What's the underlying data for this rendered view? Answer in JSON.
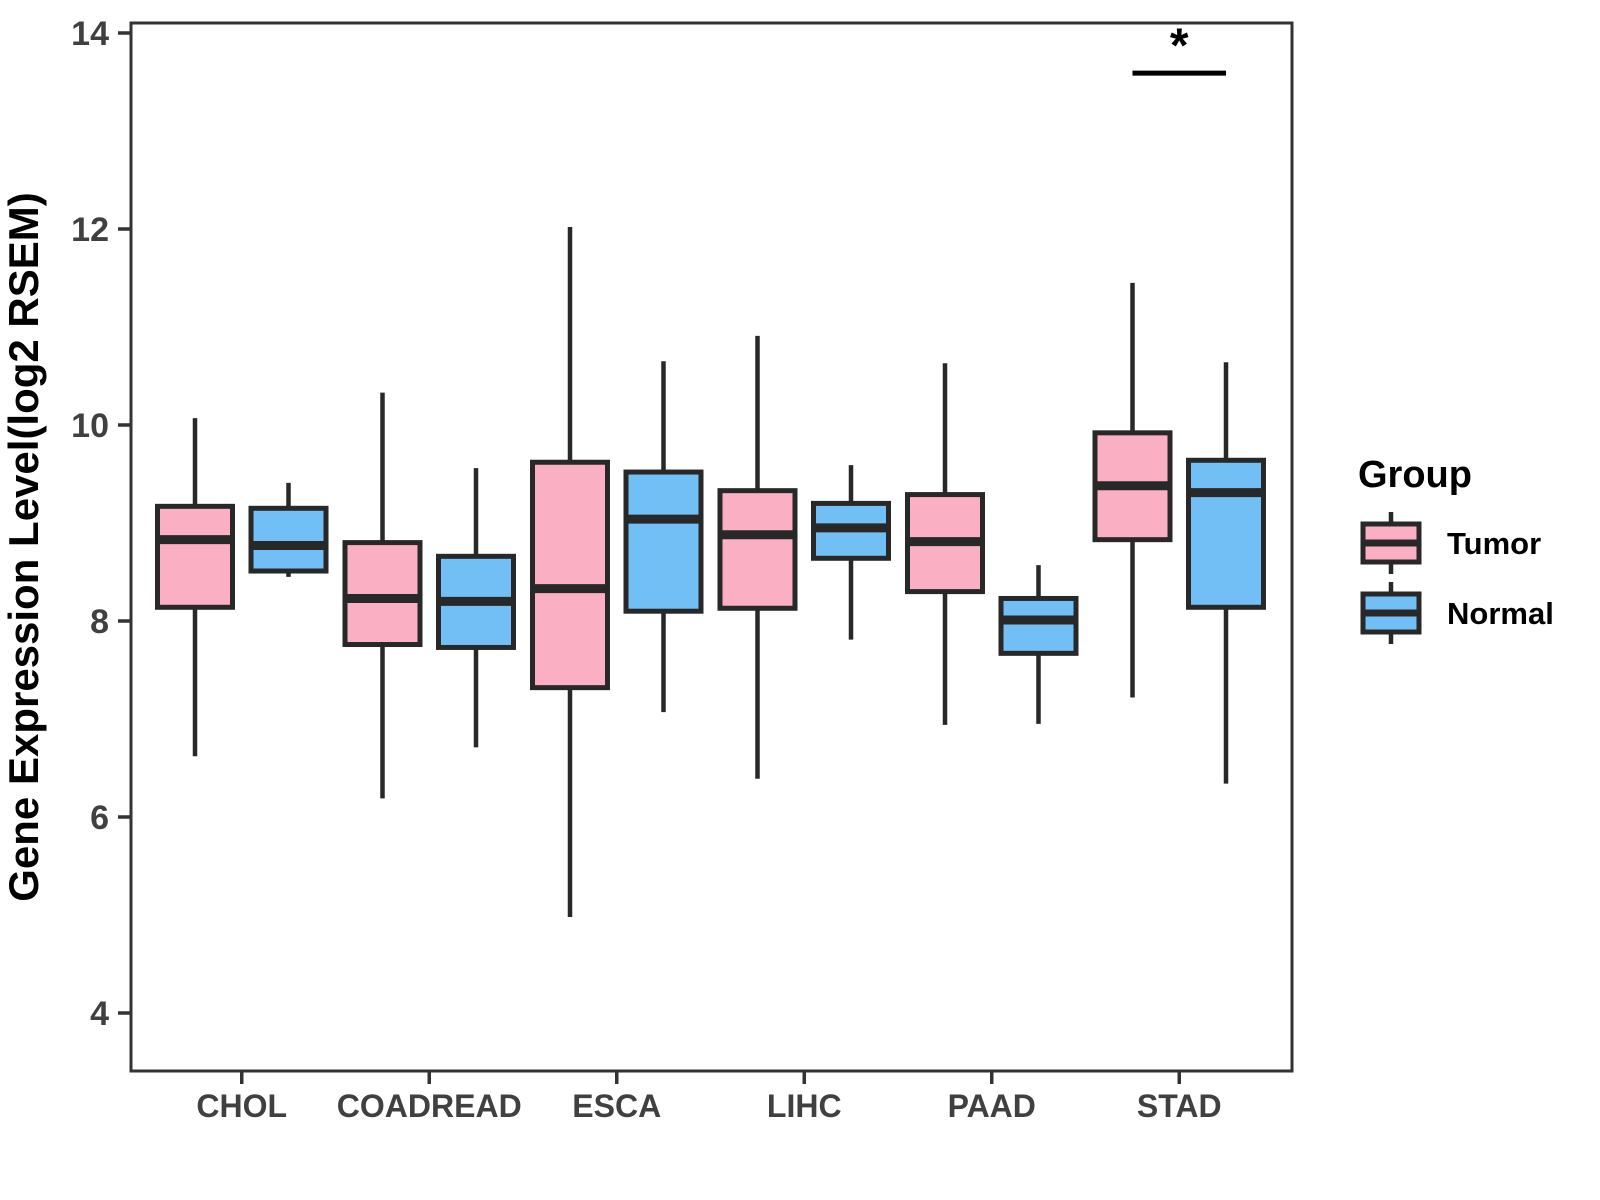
{
  "chart_data": {
    "type": "box",
    "title": "",
    "xlabel": "",
    "ylabel": "Gene Expression Level(log2 RSEM)",
    "ylim": [
      3.4,
      14.1
    ],
    "yticks": [
      14,
      12,
      10,
      8,
      6,
      4
    ],
    "categories": [
      "CHOL",
      "COADREAD",
      "ESCA",
      "LIHC",
      "PAAD",
      "STAD"
    ],
    "grid": "off",
    "legend": {
      "title": "Group",
      "position": "right",
      "entries": [
        {
          "label": "Tumor",
          "color": "#FAAFC2"
        },
        {
          "label": "Normal",
          "color": "#72BFF5"
        }
      ]
    },
    "series": [
      {
        "name": "Tumor",
        "color": "#FAAFC2",
        "boxes": [
          {
            "category": "CHOL",
            "whisker_low": 6.62,
            "q1": 8.14,
            "median": 8.83,
            "q3": 9.17,
            "whisker_high": 10.07
          },
          {
            "category": "COADREAD",
            "whisker_low": 6.19,
            "q1": 7.76,
            "median": 8.23,
            "q3": 8.8,
            "whisker_high": 10.33
          },
          {
            "category": "ESCA",
            "whisker_low": 4.98,
            "q1": 7.32,
            "median": 8.33,
            "q3": 9.62,
            "whisker_high": 12.02
          },
          {
            "category": "LIHC",
            "whisker_low": 6.39,
            "q1": 8.13,
            "median": 8.88,
            "q3": 9.33,
            "whisker_high": 10.91
          },
          {
            "category": "PAAD",
            "whisker_low": 6.94,
            "q1": 8.3,
            "median": 8.81,
            "q3": 9.29,
            "whisker_high": 10.63
          },
          {
            "category": "STAD",
            "whisker_low": 7.22,
            "q1": 8.83,
            "median": 9.38,
            "q3": 9.92,
            "whisker_high": 11.45
          }
        ]
      },
      {
        "name": "Normal",
        "color": "#72BFF5",
        "boxes": [
          {
            "category": "CHOL",
            "whisker_low": 8.45,
            "q1": 8.51,
            "median": 8.77,
            "q3": 9.15,
            "whisker_high": 9.41
          },
          {
            "category": "COADREAD",
            "whisker_low": 6.71,
            "q1": 7.73,
            "median": 8.2,
            "q3": 8.66,
            "whisker_high": 9.56
          },
          {
            "category": "ESCA",
            "whisker_low": 7.07,
            "q1": 8.1,
            "median": 9.04,
            "q3": 9.52,
            "whisker_high": 10.65
          },
          {
            "category": "LIHC",
            "whisker_low": 7.81,
            "q1": 8.64,
            "median": 8.95,
            "q3": 9.2,
            "whisker_high": 9.59
          },
          {
            "category": "PAAD",
            "whisker_low": 6.95,
            "q1": 7.67,
            "median": 8.01,
            "q3": 8.23,
            "whisker_high": 8.57
          },
          {
            "category": "STAD",
            "whisker_low": 6.34,
            "q1": 8.14,
            "median": 9.31,
            "q3": 9.64,
            "whisker_high": 10.64
          }
        ]
      }
    ],
    "annotations": [
      {
        "type": "significance-bar",
        "category": "STAD",
        "label": "*",
        "bar_y": 13.59,
        "label_y": 13.85
      }
    ],
    "colors": {
      "box_stroke": "#282828",
      "axis": "#333333",
      "tick_label": "#404040",
      "axis_title": "#000000"
    }
  }
}
